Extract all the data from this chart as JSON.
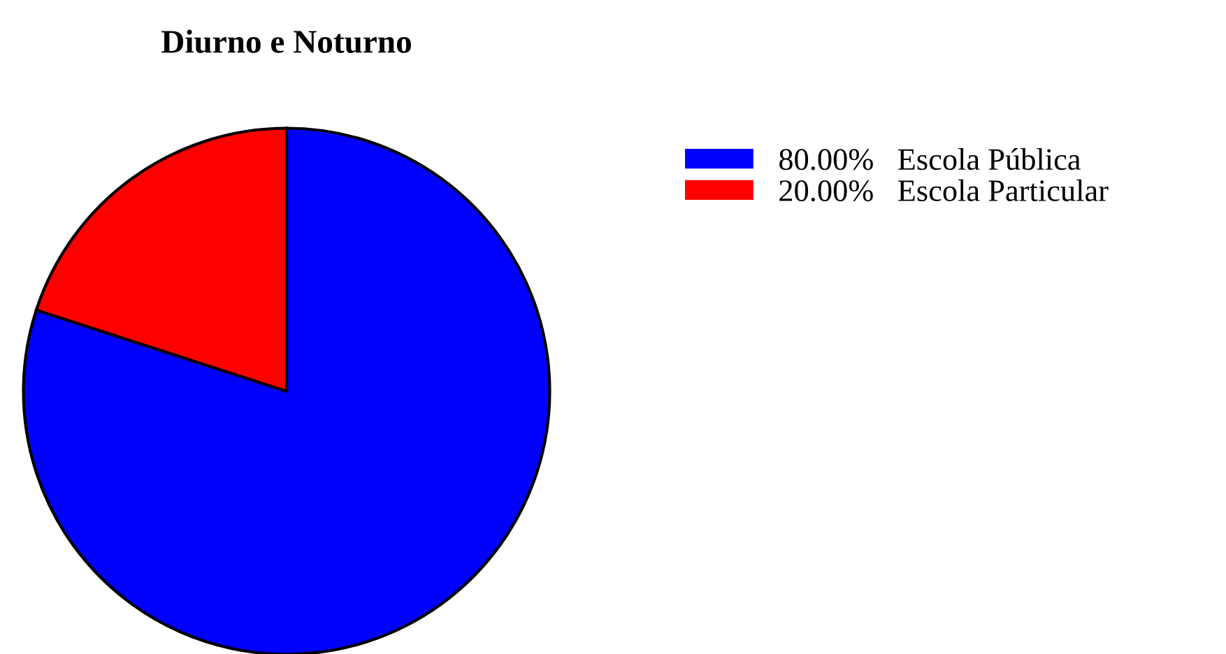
{
  "chart_data": {
    "type": "pie",
    "title": "Diurno e Noturno",
    "categories": [
      "Escola Pública",
      "Escola Particular"
    ],
    "values": [
      80,
      20
    ],
    "value_labels": [
      "80.00%",
      "20.00%"
    ],
    "colors": [
      "#0000ff",
      "#ff0000"
    ],
    "legend": "top right"
  }
}
